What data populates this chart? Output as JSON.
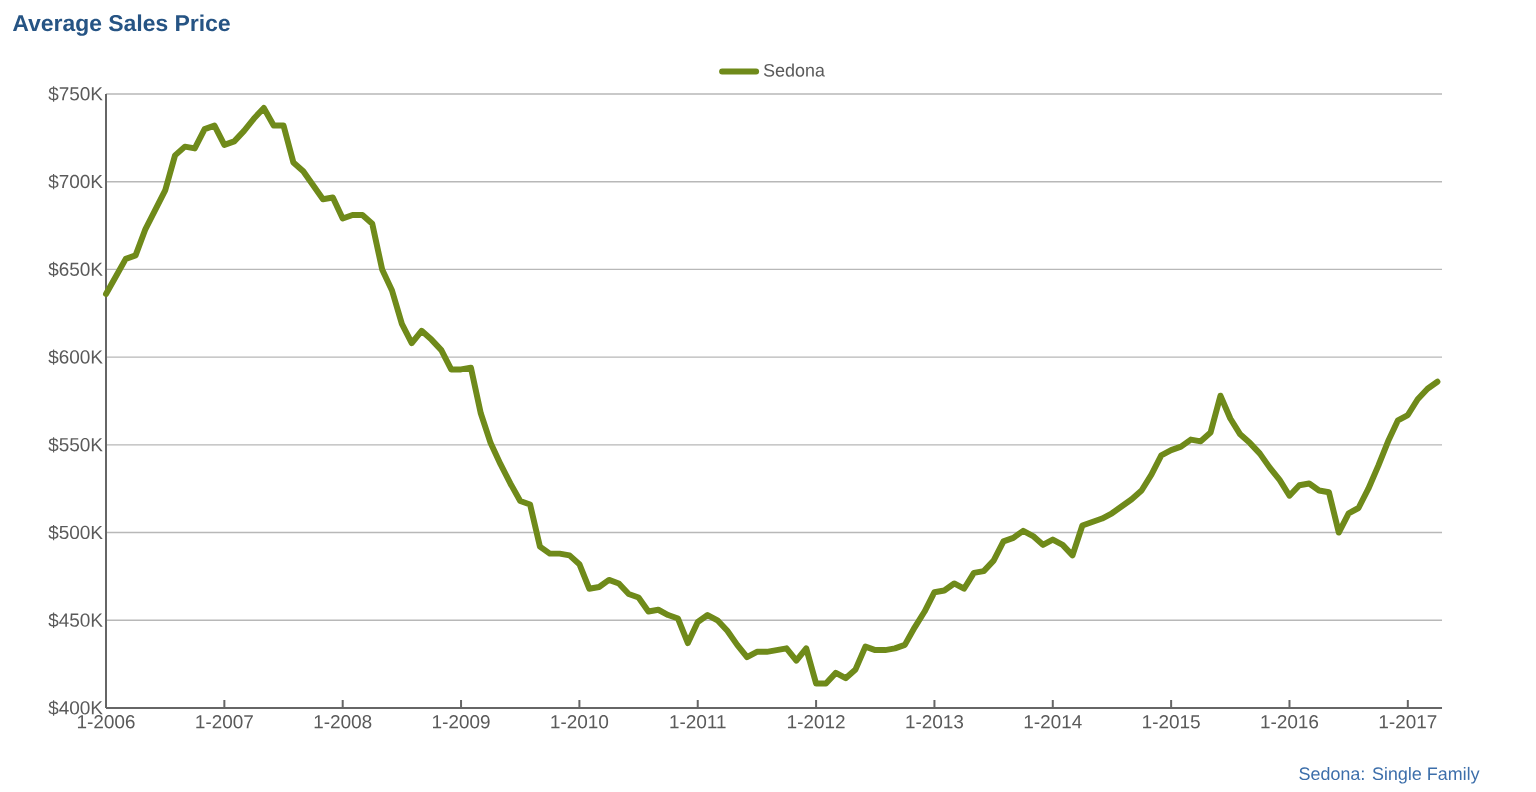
{
  "chart_data": {
    "type": "line",
    "title": "Average Sales Price",
    "annotations": [
      "Sedona: Single Family"
    ],
    "legend": "top",
    "grid": "y",
    "marker": "none",
    "line_style": "solid",
    "x": [
      "2006-01",
      "2006-02",
      "2006-03",
      "2006-04",
      "2006-05",
      "2006-06",
      "2006-07",
      "2006-08",
      "2006-09",
      "2006-10",
      "2006-11",
      "2006-12",
      "2007-01",
      "2007-02",
      "2007-03",
      "2007-04",
      "2007-05",
      "2007-06",
      "2007-07",
      "2007-08",
      "2007-09",
      "2007-10",
      "2007-11",
      "2007-12",
      "2008-01",
      "2008-02",
      "2008-03",
      "2008-04",
      "2008-05",
      "2008-06",
      "2008-07",
      "2008-08",
      "2008-09",
      "2008-10",
      "2008-11",
      "2008-12",
      "2009-01",
      "2009-02",
      "2009-03",
      "2009-04",
      "2009-05",
      "2009-06",
      "2009-07",
      "2009-08",
      "2009-09",
      "2009-10",
      "2009-11",
      "2009-12",
      "2010-01",
      "2010-02",
      "2010-03",
      "2010-04",
      "2010-05",
      "2010-06",
      "2010-07",
      "2010-08",
      "2010-09",
      "2010-10",
      "2010-11",
      "2010-12",
      "2011-01",
      "2011-02",
      "2011-03",
      "2011-04",
      "2011-05",
      "2011-06",
      "2011-07",
      "2011-08",
      "2011-09",
      "2011-10",
      "2011-11",
      "2011-12",
      "2012-01",
      "2012-02",
      "2012-03",
      "2012-04",
      "2012-05",
      "2012-06",
      "2012-07",
      "2012-08",
      "2012-09",
      "2012-10",
      "2012-11",
      "2012-12",
      "2013-01",
      "2013-02",
      "2013-03",
      "2013-04",
      "2013-05",
      "2013-06",
      "2013-07",
      "2013-08",
      "2013-09",
      "2013-10",
      "2013-11",
      "2013-12",
      "2014-01",
      "2014-02",
      "2014-03",
      "2014-04",
      "2014-05",
      "2014-06",
      "2014-07",
      "2014-08",
      "2014-09",
      "2014-10",
      "2014-11",
      "2014-12",
      "2015-01",
      "2015-02",
      "2015-03",
      "2015-04",
      "2015-05",
      "2015-06",
      "2015-07",
      "2015-08",
      "2015-09",
      "2015-10",
      "2015-11",
      "2015-12",
      "2016-01",
      "2016-02",
      "2016-03",
      "2016-04",
      "2016-05",
      "2016-06",
      "2016-07",
      "2016-08",
      "2016-09",
      "2016-10",
      "2016-11",
      "2016-12",
      "2017-01",
      "2017-02",
      "2017-03",
      "2017-04"
    ],
    "series": [
      {
        "name": "Sedona",
        "color": "#6f8a1a",
        "values": [
          636,
          646,
          656,
          658,
          673,
          684,
          695,
          715,
          720,
          719,
          730,
          732,
          721,
          723,
          729,
          736,
          742,
          732,
          732,
          711,
          706,
          698,
          690,
          691,
          679,
          681,
          681,
          676,
          650,
          638,
          619,
          608,
          615,
          610,
          604,
          593,
          593,
          594,
          568,
          551,
          539,
          528,
          518,
          516,
          492,
          488,
          488,
          487,
          482,
          468,
          469,
          473,
          471,
          465,
          463,
          455,
          456,
          453,
          451,
          437,
          449,
          453,
          450,
          444,
          436,
          429,
          432,
          432,
          433,
          434,
          427,
          434,
          414,
          414,
          420,
          417,
          422,
          435,
          433,
          433,
          434,
          436,
          446,
          455,
          466,
          467,
          471,
          468,
          477,
          478,
          484,
          495,
          497,
          501,
          498,
          493,
          496,
          493,
          487,
          504,
          506,
          508,
          511,
          515,
          519,
          524,
          533,
          544,
          547,
          549,
          553,
          552,
          557,
          578,
          565,
          556,
          551,
          545,
          537,
          530,
          521,
          527,
          528,
          524,
          523,
          500,
          511,
          514,
          525,
          538,
          552,
          564,
          567,
          576,
          582,
          586
        ]
      }
    ],
    "xlim": [
      "2006-01",
      "2017-04-15"
    ],
    "xticks": [
      {
        "value": "2006-01",
        "label": "1-2006"
      },
      {
        "value": "2007-01",
        "label": "1-2007"
      },
      {
        "value": "2008-01",
        "label": "1-2008"
      },
      {
        "value": "2009-01",
        "label": "1-2009"
      },
      {
        "value": "2010-01",
        "label": "1-2010"
      },
      {
        "value": "2011-01",
        "label": "1-2011"
      },
      {
        "value": "2012-01",
        "label": "1-2012"
      },
      {
        "value": "2013-01",
        "label": "1-2013"
      },
      {
        "value": "2014-01",
        "label": "1-2014"
      },
      {
        "value": "2015-01",
        "label": "1-2015"
      },
      {
        "value": "2016-01",
        "label": "1-2016"
      },
      {
        "value": "2017-01",
        "label": "1-2017"
      }
    ],
    "ylim": [
      400,
      750
    ],
    "yticks": [
      {
        "value": 400,
        "label": "$400K"
      },
      {
        "value": 450,
        "label": "$450K"
      },
      {
        "value": 500,
        "label": "$500K"
      },
      {
        "value": 550,
        "label": "$550K"
      },
      {
        "value": 600,
        "label": "$600K"
      },
      {
        "value": 650,
        "label": "$650K"
      },
      {
        "value": 700,
        "label": "$700K"
      },
      {
        "value": 750,
        "label": "$750K"
      }
    ]
  }
}
